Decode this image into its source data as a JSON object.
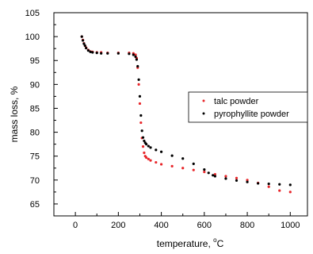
{
  "chart_data": {
    "type": "scatter",
    "xlabel": "temperature, °C",
    "xlabel_main": "temperature, ",
    "xlabel_unit_sup": "o",
    "xlabel_unit": "C",
    "ylabel": "mass loss, %",
    "xlim": [
      -100,
      1080
    ],
    "ylim": [
      62.5,
      105
    ],
    "xticks": [
      0,
      200,
      400,
      600,
      800,
      1000
    ],
    "xtick_labels": [
      "0",
      "200",
      "400",
      "600",
      "800",
      "1000"
    ],
    "yticks": [
      65,
      70,
      75,
      80,
      85,
      90,
      95,
      100,
      105
    ],
    "ytick_labels": [
      "65",
      "70",
      "75",
      "80",
      "85",
      "90",
      "95",
      "100",
      "105"
    ],
    "grid": false,
    "legend_position": "right",
    "series": [
      {
        "name": "talc powder",
        "color": "#e8262a",
        "x": [
          30,
          35,
          40,
          45,
          50,
          60,
          70,
          80,
          100,
          120,
          150,
          200,
          250,
          270,
          280,
          285,
          290,
          295,
          300,
          305,
          310,
          315,
          320,
          325,
          330,
          340,
          350,
          375,
          400,
          450,
          500,
          550,
          600,
          650,
          700,
          750,
          800,
          850,
          900,
          950,
          1000
        ],
        "y": [
          100,
          99.3,
          98.6,
          98.1,
          97.7,
          97.2,
          96.9,
          96.8,
          96.7,
          96.7,
          96.6,
          96.6,
          96.6,
          96.5,
          96.2,
          95.5,
          93.5,
          90,
          86,
          82,
          78.8,
          77,
          75.7,
          75,
          74.7,
          74.4,
          74.1,
          73.7,
          73.3,
          72.9,
          72.5,
          72.1,
          71.7,
          71.2,
          70.8,
          70.4,
          70,
          69.4,
          68.6,
          67.8,
          67.5
        ]
      },
      {
        "name": "pyrophyllite powder",
        "color": "#000000",
        "x": [
          30,
          35,
          40,
          45,
          50,
          60,
          70,
          80,
          100,
          120,
          150,
          200,
          250,
          270,
          280,
          285,
          290,
          295,
          300,
          305,
          310,
          315,
          320,
          325,
          330,
          340,
          350,
          375,
          400,
          450,
          500,
          550,
          600,
          620,
          640,
          650,
          700,
          750,
          800,
          850,
          900,
          950,
          1000
        ],
        "y": [
          100,
          99.2,
          98.5,
          98.1,
          97.6,
          97.1,
          96.8,
          96.7,
          96.6,
          96.5,
          96.5,
          96.5,
          96.4,
          96.2,
          95.8,
          95.2,
          93.8,
          91,
          87.5,
          83.5,
          80.3,
          78.9,
          78.2,
          77.8,
          77.5,
          77.1,
          76.8,
          76.3,
          75.9,
          75.1,
          74.5,
          73.4,
          72.2,
          71.5,
          71,
          70.8,
          70.3,
          69.9,
          69.6,
          69.3,
          69.2,
          69.1,
          69
        ]
      }
    ]
  }
}
